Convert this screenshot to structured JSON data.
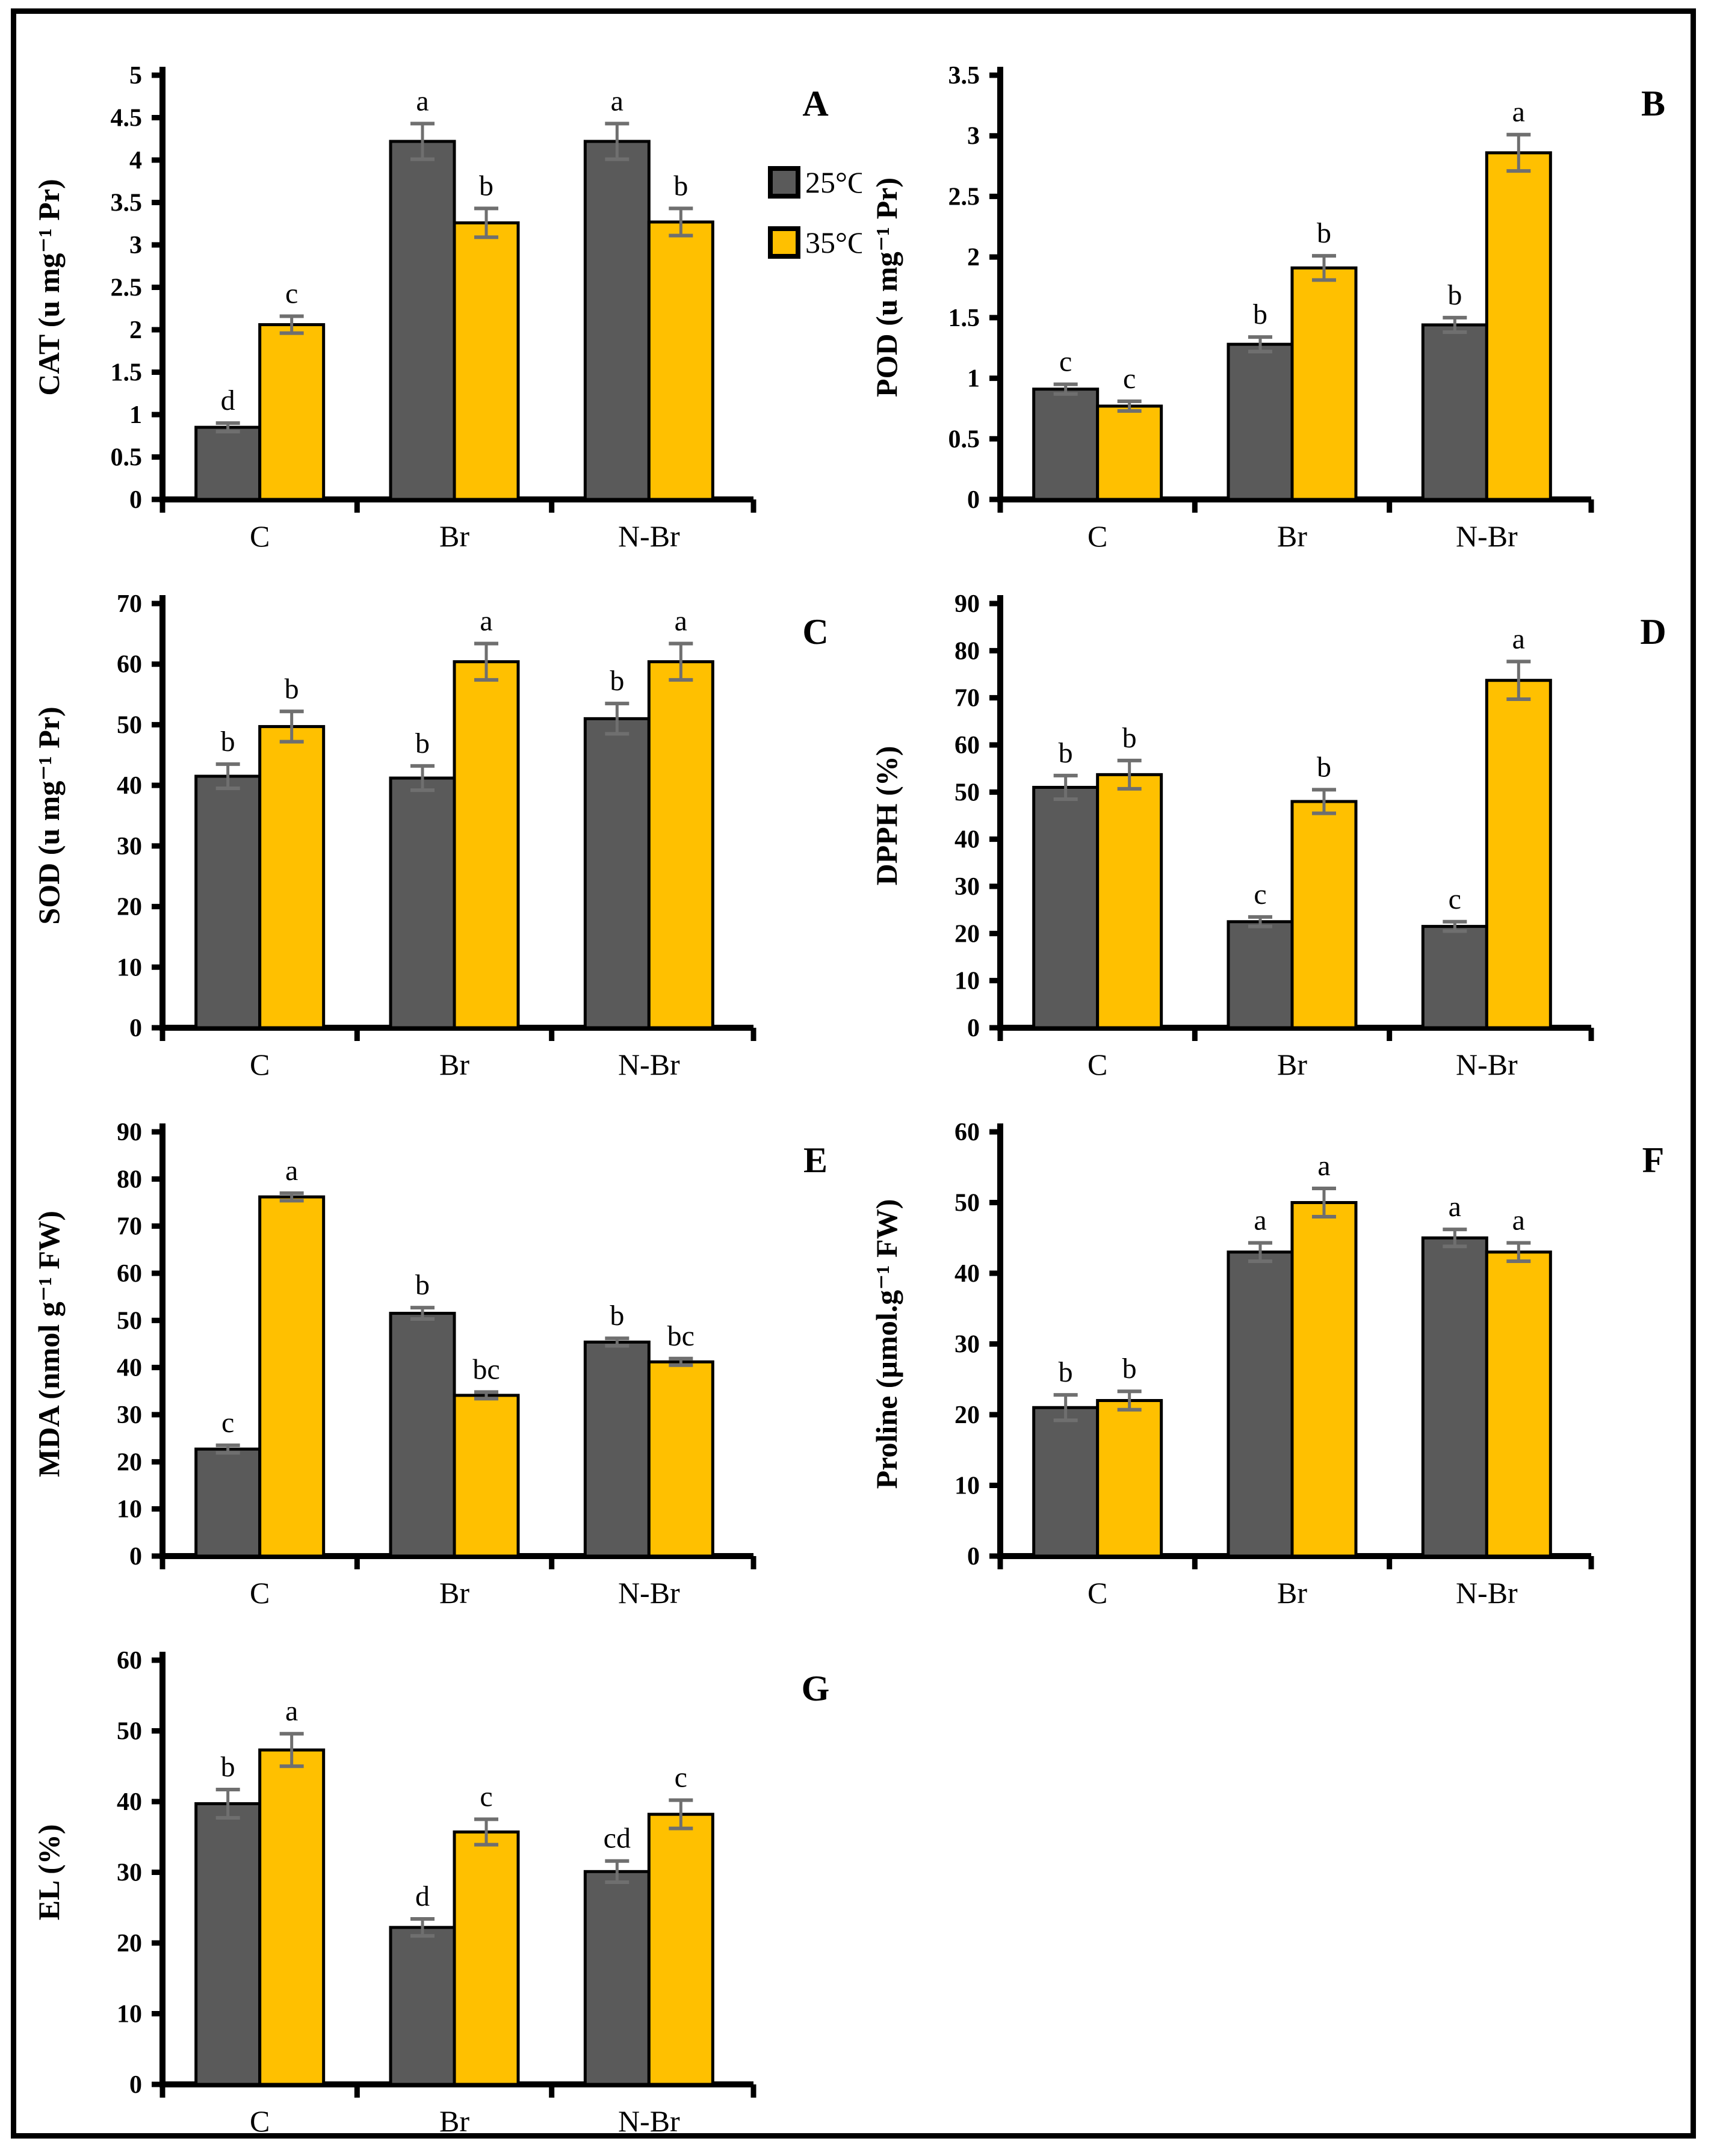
{
  "figure": {
    "background": "#ffffff",
    "frame_color": "#000000",
    "axis_color": "#000000",
    "error_bar_color": "#6f6f6f",
    "legend": {
      "position": "right-of-panel-A",
      "items": [
        {
          "label": "25°C",
          "color": "#5a5a5a"
        },
        {
          "label": "35°C",
          "color": "#ffc000"
        }
      ]
    }
  },
  "chart_data": [
    {
      "panel_letter": "A",
      "type": "bar",
      "title": "",
      "xlabel": "",
      "ylabel": "CAT (u mg⁻¹ Pr)",
      "categories": [
        "C",
        "Br",
        "N-Br"
      ],
      "ylim": [
        0,
        5
      ],
      "ytick_step": 0.5,
      "grid": false,
      "has_legend": true,
      "series": [
        {
          "name": "25°C",
          "color": "#5a5a5a",
          "values": [
            0.85,
            4.22,
            4.22
          ],
          "errors": [
            0.05,
            0.21,
            0.21
          ],
          "letters": [
            "d",
            "a",
            "a"
          ]
        },
        {
          "name": "35°C",
          "color": "#ffc000",
          "values": [
            2.06,
            3.26,
            3.27
          ],
          "errors": [
            0.1,
            0.17,
            0.16
          ],
          "letters": [
            "c",
            "b",
            "b"
          ]
        }
      ]
    },
    {
      "panel_letter": "B",
      "type": "bar",
      "title": "",
      "xlabel": "",
      "ylabel": "POD (u mg⁻¹ Pr)",
      "categories": [
        "C",
        "Br",
        "N-Br"
      ],
      "ylim": [
        0,
        3.5
      ],
      "ytick_step": 0.5,
      "grid": false,
      "has_legend": false,
      "series": [
        {
          "name": "25°C",
          "color": "#5a5a5a",
          "values": [
            0.91,
            1.28,
            1.44
          ],
          "errors": [
            0.04,
            0.06,
            0.06
          ],
          "letters": [
            "c",
            "b",
            "b"
          ]
        },
        {
          "name": "35°C",
          "color": "#ffc000",
          "values": [
            0.77,
            1.91,
            2.86
          ],
          "errors": [
            0.04,
            0.1,
            0.15
          ],
          "letters": [
            "c",
            "b",
            "a"
          ]
        }
      ]
    },
    {
      "panel_letter": "C",
      "type": "bar",
      "title": "",
      "xlabel": "",
      "ylabel": "SOD (u mg⁻¹ Pr)",
      "categories": [
        "C",
        "Br",
        "N-Br"
      ],
      "ylim": [
        0,
        70
      ],
      "ytick_step": 10,
      "grid": false,
      "has_legend": false,
      "series": [
        {
          "name": "25°C",
          "color": "#5a5a5a",
          "values": [
            41.5,
            41.2,
            51.0
          ],
          "errors": [
            2.0,
            2.0,
            2.5
          ],
          "letters": [
            "b",
            "b",
            "b"
          ]
        },
        {
          "name": "35°C",
          "color": "#ffc000",
          "values": [
            49.7,
            60.4,
            60.4
          ],
          "errors": [
            2.5,
            3.0,
            3.0
          ],
          "letters": [
            "b",
            "a",
            "a"
          ]
        }
      ]
    },
    {
      "panel_letter": "D",
      "type": "bar",
      "title": "",
      "xlabel": "",
      "ylabel": "DPPH (%)",
      "categories": [
        "C",
        "Br",
        "N-Br"
      ],
      "ylim": [
        0,
        90
      ],
      "ytick_step": 10,
      "grid": false,
      "has_legend": false,
      "series": [
        {
          "name": "25°C",
          "color": "#5a5a5a",
          "values": [
            51.0,
            22.5,
            21.5
          ],
          "errors": [
            2.5,
            1.0,
            1.0
          ],
          "letters": [
            "b",
            "c",
            "c"
          ]
        },
        {
          "name": "35°C",
          "color": "#ffc000",
          "values": [
            53.7,
            48.0,
            73.7
          ],
          "errors": [
            3.0,
            2.5,
            4.0
          ],
          "letters": [
            "b",
            "b",
            "a"
          ]
        }
      ]
    },
    {
      "panel_letter": "E",
      "type": "bar",
      "title": "",
      "xlabel": "",
      "ylabel": "MDA (nmol g⁻¹ FW)",
      "categories": [
        "C",
        "Br",
        "N-Br"
      ],
      "ylim": [
        0,
        90
      ],
      "ytick_step": 10,
      "grid": false,
      "has_legend": false,
      "series": [
        {
          "name": "25°C",
          "color": "#5a5a5a",
          "values": [
            22.7,
            51.5,
            45.4
          ],
          "errors": [
            0.8,
            1.2,
            0.8
          ],
          "letters": [
            "c",
            "b",
            "b"
          ]
        },
        {
          "name": "35°C",
          "color": "#ffc000",
          "values": [
            76.2,
            34.1,
            41.2
          ],
          "errors": [
            0.8,
            0.7,
            0.7
          ],
          "letters": [
            "a",
            "bc",
            "bc"
          ]
        }
      ]
    },
    {
      "panel_letter": "F",
      "type": "bar",
      "title": "",
      "xlabel": "",
      "ylabel": "Proline (µmol.g⁻¹ FW)",
      "categories": [
        "C",
        "Br",
        "N-Br"
      ],
      "ylim": [
        0,
        60
      ],
      "ytick_step": 10,
      "grid": false,
      "has_legend": false,
      "series": [
        {
          "name": "25°C",
          "color": "#5a5a5a",
          "values": [
            21.0,
            43.0,
            45.0
          ],
          "errors": [
            1.8,
            1.3,
            1.2
          ],
          "letters": [
            "b",
            "a",
            "a"
          ]
        },
        {
          "name": "35°C",
          "color": "#ffc000",
          "values": [
            22.0,
            50.0,
            43.0
          ],
          "errors": [
            1.3,
            2.0,
            1.3
          ],
          "letters": [
            "b",
            "a",
            "a"
          ]
        }
      ]
    },
    {
      "panel_letter": "G",
      "type": "bar",
      "title": "",
      "xlabel": "",
      "ylabel": "EL (%)",
      "categories": [
        "C",
        "Br",
        "N-Br"
      ],
      "ylim": [
        0,
        60
      ],
      "ytick_step": 10,
      "grid": false,
      "has_legend": false,
      "series": [
        {
          "name": "25°C",
          "color": "#5a5a5a",
          "values": [
            39.7,
            22.2,
            30.1
          ],
          "errors": [
            2.0,
            1.2,
            1.5
          ],
          "letters": [
            "b",
            "d",
            "cd"
          ]
        },
        {
          "name": "35°C",
          "color": "#ffc000",
          "values": [
            47.3,
            35.7,
            38.2
          ],
          "errors": [
            2.3,
            1.8,
            2.0
          ],
          "letters": [
            "a",
            "c",
            "c"
          ]
        }
      ]
    }
  ]
}
